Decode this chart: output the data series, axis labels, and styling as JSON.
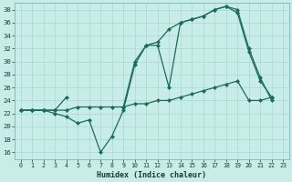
{
  "xlabel": "Humidex (Indice chaleur)",
  "bg_color": "#c8ede9",
  "grid_color": "#a8d8d0",
  "line_color": "#1a6b5a",
  "xlim": [
    -0.5,
    23.5
  ],
  "ylim": [
    15.0,
    39.0
  ],
  "yticks": [
    16,
    18,
    20,
    22,
    24,
    26,
    28,
    30,
    32,
    34,
    36,
    38
  ],
  "xticks": [
    0,
    1,
    2,
    3,
    4,
    5,
    6,
    7,
    8,
    9,
    10,
    11,
    12,
    13,
    14,
    15,
    16,
    17,
    18,
    19,
    20,
    21,
    22,
    23
  ],
  "line1_x": [
    0,
    1,
    2,
    3,
    4,
    5,
    6,
    7,
    8,
    9,
    10,
    11,
    12,
    13,
    14,
    15,
    16,
    17,
    18,
    19,
    20,
    21,
    22
  ],
  "line1_y": [
    22.5,
    22.5,
    22.5,
    22.0,
    21.5,
    20.5,
    21.0,
    16.0,
    18.5,
    22.5,
    29.5,
    32.5,
    32.5,
    26.0,
    36.0,
    36.5,
    37.0,
    38.0,
    38.5,
    37.5,
    31.5,
    27.0,
    24.5
  ],
  "line2_segments": [
    {
      "x": [
        0,
        1,
        2,
        3,
        4
      ],
      "y": [
        22.5,
        22.5,
        22.5,
        22.5,
        24.5
      ]
    },
    {
      "x": [
        9,
        10,
        11,
        12,
        13,
        14,
        15,
        16,
        17,
        18,
        19,
        20,
        21,
        22
      ],
      "y": [
        23.0,
        30.0,
        32.5,
        33.0,
        35.0,
        36.0,
        36.5,
        37.0,
        38.0,
        38.5,
        38.0,
        32.0,
        27.5,
        24.0
      ]
    }
  ],
  "line3_x": [
    0,
    1,
    2,
    3,
    4,
    5,
    6,
    7,
    8,
    9,
    10,
    11,
    12,
    13,
    14,
    15,
    16,
    17,
    18,
    19,
    20,
    21,
    22
  ],
  "line3_y": [
    22.5,
    22.5,
    22.5,
    22.5,
    22.5,
    23.0,
    23.0,
    23.0,
    23.0,
    23.0,
    23.5,
    23.5,
    24.0,
    24.0,
    24.5,
    25.0,
    25.5,
    26.0,
    26.5,
    27.0,
    24.0,
    24.0,
    24.5
  ]
}
